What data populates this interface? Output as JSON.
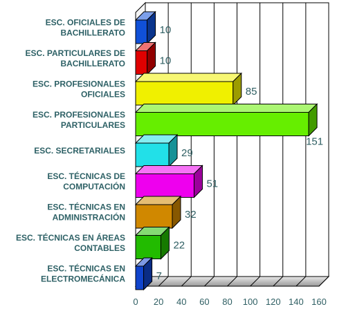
{
  "chart_data": {
    "type": "bar",
    "orientation": "horizontal",
    "style": "3d",
    "categories": [
      [
        "ESC. OFICIALES DE",
        "BACHILLERATO"
      ],
      [
        "ESC. PARTICULARES DE",
        "BACHILLERATO"
      ],
      [
        "ESC. PROFESIONALES",
        "OFICIALES"
      ],
      [
        "ESC. PROFESIONALES",
        "PARTICULARES"
      ],
      [
        "ESC. SECRETARIALES"
      ],
      [
        "ESC. TÉCNICAS DE",
        "COMPUTACIÓN"
      ],
      [
        "ESC. TÉCNICAS EN",
        "ADMINISTRACIÓN"
      ],
      [
        "ESC. TÉCNICAS EN ÁREAS",
        "CONTABLES"
      ],
      [
        "ESC. TÉCNICAS EN",
        "ELECTROMECÁNICA"
      ]
    ],
    "values": [
      10,
      10,
      85,
      151,
      29,
      51,
      32,
      22,
      7
    ],
    "value_labels": [
      "10",
      "10",
      "85",
      "151",
      "29",
      "51",
      "32",
      "22",
      "7"
    ],
    "bar_colors": [
      "#1050d8",
      "#e00000",
      "#f0f000",
      "#66ee00",
      "#22e0e8",
      "#ee00ee",
      "#d08800",
      "#22bb00",
      "#1044cc"
    ],
    "xlim": [
      0,
      160
    ],
    "xticks": [
      0,
      20,
      40,
      60,
      80,
      100,
      120,
      140,
      160
    ],
    "xtick_labels": [
      "0",
      "20",
      "40",
      "60",
      "80",
      "100",
      "120",
      "140",
      "160"
    ],
    "title": "",
    "xlabel": "",
    "ylabel": "",
    "grid": "vertical",
    "legend": "none"
  }
}
